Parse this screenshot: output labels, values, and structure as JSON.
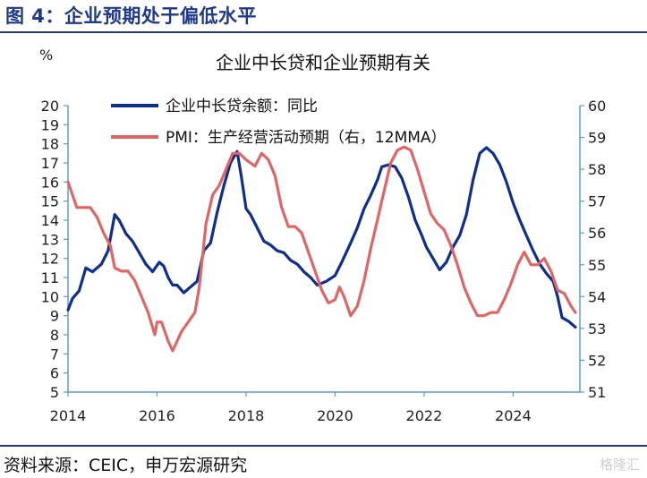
{
  "figure_title": "图 4：企业预期处于偏低水平",
  "source": "资料来源：CEIC，申万宏源研究",
  "watermark": "格隆汇",
  "colors": {
    "navy": "#1f3a8a",
    "line_blue": "#0e2f8f",
    "line_red": "#e06666",
    "axis": "#5b9bd5"
  },
  "chart_data": {
    "type": "line",
    "title": "企业中长贷和企业预期有关",
    "y_unit_label": "%",
    "xlim": [
      2014.0,
      2025.5
    ],
    "x_ticks": [
      "2014",
      "2016",
      "2018",
      "2020",
      "2022",
      "2024"
    ],
    "y_left": {
      "min": 5,
      "max": 20,
      "ticks": [
        "5",
        "6",
        "7",
        "8",
        "9",
        "10",
        "11",
        "12",
        "13",
        "14",
        "15",
        "16",
        "17",
        "18",
        "19",
        "20"
      ]
    },
    "y_right": {
      "min": 51,
      "max": 60,
      "ticks": [
        "51",
        "52",
        "53",
        "54",
        "55",
        "56",
        "57",
        "58",
        "59",
        "60"
      ]
    },
    "grid": false,
    "legend_position": "top",
    "series": [
      {
        "name": "企业中长贷余额：同比",
        "axis": "left",
        "color": "#0e2f8f",
        "x": [
          2014.0,
          2014.1,
          2014.25,
          2014.4,
          2014.55,
          2014.75,
          2014.9,
          2015.05,
          2015.15,
          2015.3,
          2015.45,
          2015.6,
          2015.75,
          2015.9,
          2016.05,
          2016.15,
          2016.25,
          2016.35,
          2016.45,
          2016.6,
          2016.75,
          2016.9,
          2017.05,
          2017.2,
          2017.35,
          2017.5,
          2017.65,
          2017.8,
          2017.9,
          2018.0,
          2018.1,
          2018.25,
          2018.4,
          2018.55,
          2018.7,
          2018.85,
          2019.0,
          2019.15,
          2019.3,
          2019.45,
          2019.6,
          2019.8,
          2020.0,
          2020.15,
          2020.35,
          2020.5,
          2020.65,
          2020.8,
          2020.95,
          2021.05,
          2021.2,
          2021.35,
          2021.5,
          2021.65,
          2021.8,
          2021.95,
          2022.05,
          2022.2,
          2022.35,
          2022.5,
          2022.65,
          2022.8,
          2022.95,
          2023.1,
          2023.25,
          2023.4,
          2023.55,
          2023.7,
          2023.85,
          2024.0,
          2024.15,
          2024.3,
          2024.45,
          2024.6,
          2024.75,
          2024.9,
          2025.0,
          2025.1,
          2025.25,
          2025.4
        ],
        "y": [
          9.3,
          9.9,
          10.3,
          11.5,
          11.3,
          11.7,
          12.4,
          14.3,
          14.0,
          13.3,
          12.9,
          12.3,
          11.7,
          11.3,
          11.8,
          11.6,
          11.0,
          10.6,
          10.6,
          10.2,
          10.5,
          10.8,
          12.4,
          12.8,
          14.4,
          15.8,
          17.0,
          17.6,
          16.2,
          14.6,
          14.3,
          13.6,
          12.9,
          12.7,
          12.4,
          12.3,
          11.9,
          11.7,
          11.3,
          11.0,
          10.6,
          10.8,
          11.1,
          11.8,
          12.8,
          13.6,
          14.6,
          15.3,
          16.1,
          16.8,
          16.9,
          16.8,
          16.2,
          15.2,
          14.0,
          13.2,
          12.6,
          12.0,
          11.4,
          11.8,
          12.6,
          13.2,
          14.3,
          16.1,
          17.5,
          17.8,
          17.5,
          16.9,
          16.0,
          14.9,
          14.0,
          13.2,
          12.4,
          11.7,
          11.2,
          10.8,
          10.0,
          8.9,
          8.7,
          8.4
        ]
      },
      {
        "name": "PMI：生产经营活动预期（右，12MMA）",
        "axis": "right",
        "color": "#e06666",
        "x": [
          2014.0,
          2014.1,
          2014.2,
          2014.35,
          2014.5,
          2014.65,
          2014.8,
          2014.95,
          2015.05,
          2015.2,
          2015.35,
          2015.5,
          2015.65,
          2015.8,
          2015.95,
          2016.0,
          2016.1,
          2016.25,
          2016.35,
          2016.45,
          2016.55,
          2016.7,
          2016.85,
          2016.95,
          2017.1,
          2017.25,
          2017.4,
          2017.55,
          2017.7,
          2017.85,
          2018.0,
          2018.1,
          2018.2,
          2018.35,
          2018.5,
          2018.65,
          2018.8,
          2018.95,
          2019.1,
          2019.25,
          2019.4,
          2019.55,
          2019.7,
          2019.85,
          2020.0,
          2020.1,
          2020.2,
          2020.35,
          2020.5,
          2020.65,
          2020.8,
          2020.95,
          2021.1,
          2021.25,
          2021.4,
          2021.55,
          2021.7,
          2021.85,
          2022.0,
          2022.15,
          2022.3,
          2022.45,
          2022.6,
          2022.75,
          2022.9,
          2023.05,
          2023.2,
          2023.35,
          2023.5,
          2023.65,
          2023.8,
          2023.95,
          2024.1,
          2024.25,
          2024.4,
          2024.55,
          2024.7,
          2024.85,
          2025.0,
          2025.15,
          2025.3,
          2025.4
        ],
        "y": [
          57.6,
          57.2,
          56.8,
          56.8,
          56.8,
          56.5,
          56.0,
          55.6,
          54.9,
          54.8,
          54.8,
          54.5,
          54.0,
          53.5,
          52.8,
          53.2,
          53.2,
          52.6,
          52.3,
          52.6,
          52.9,
          53.2,
          53.5,
          54.3,
          56.3,
          57.2,
          57.5,
          58.0,
          58.5,
          58.5,
          58.3,
          58.2,
          58.1,
          58.5,
          58.3,
          57.8,
          56.8,
          56.2,
          56.2,
          56.0,
          55.4,
          54.8,
          54.2,
          53.8,
          53.9,
          54.3,
          54.0,
          53.4,
          53.7,
          54.5,
          55.5,
          56.4,
          57.3,
          58.2,
          58.6,
          58.7,
          58.6,
          58.0,
          57.3,
          56.6,
          56.3,
          56.1,
          55.6,
          55.0,
          54.3,
          53.8,
          53.4,
          53.4,
          53.5,
          53.5,
          53.9,
          54.4,
          55.0,
          55.4,
          55.0,
          55.0,
          55.2,
          54.8,
          54.2,
          54.1,
          53.7,
          53.5
        ]
      }
    ]
  }
}
